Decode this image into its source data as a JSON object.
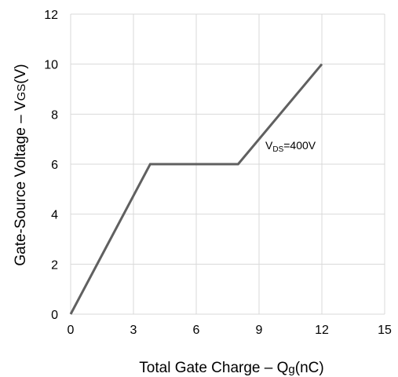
{
  "chart_data": {
    "type": "line",
    "x_label_parts": [
      "Total Gate Charge  –  Q",
      "g",
      "(nC)"
    ],
    "y_label_parts": [
      "Gate-Source Voltage  –  V",
      "GS",
      "(V)"
    ],
    "xlim": [
      0,
      15
    ],
    "ylim": [
      0,
      12
    ],
    "x_ticks": [
      0,
      3,
      6,
      9,
      12,
      15
    ],
    "y_ticks": [
      0,
      2,
      4,
      6,
      8,
      10,
      12
    ],
    "grid": true,
    "series": [
      {
        "x": [
          0,
          3.8,
          8.0,
          12.0
        ],
        "y": [
          0,
          6.0,
          6.0,
          10.0
        ],
        "color": "#606060"
      }
    ],
    "annotation": {
      "main": "V",
      "sub": "DS",
      "rest": "=400V",
      "x": 9.3,
      "y": 6.6
    }
  }
}
